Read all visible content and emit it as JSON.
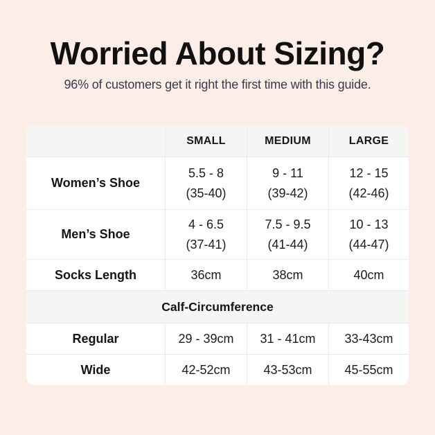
{
  "header": {
    "title": "Worried About Sizing?",
    "subtitle": "96% of customers get it right the first time with this guide."
  },
  "size_table": {
    "column_headers": [
      "SMALL",
      "MEDIUM",
      "LARGE"
    ],
    "shoe_rows": [
      {
        "label": "Women’s Shoe",
        "small": [
          "5.5 - 8",
          "(35-40)"
        ],
        "medium": [
          "9 - 11",
          "(39-42)"
        ],
        "large": [
          "12 - 15",
          "(42-46)"
        ]
      },
      {
        "label": "Men’s Shoe",
        "small": [
          "4 - 6.5",
          "(37-41)"
        ],
        "medium": [
          "7.5 - 9.5",
          "(41-44)"
        ],
        "large": [
          "10 - 13",
          "(44-47)"
        ]
      }
    ],
    "socks_row": {
      "label": "Socks Length",
      "small": "36cm",
      "medium": "38cm",
      "large": "40cm"
    },
    "section_header": "Calf-Circumference",
    "calf_rows": [
      {
        "label": "Regular",
        "small": "29 - 39cm",
        "medium": "31 - 41cm",
        "large": "33-43cm"
      },
      {
        "label": "Wide",
        "small": "42-52cm",
        "medium": "43-53cm",
        "large": "45-55cm"
      }
    ]
  },
  "chart_data": {
    "type": "table",
    "title": "Worried About Sizing?",
    "subtitle": "96% of customers get it right the first time with this guide.",
    "columns": [
      "",
      "SMALL",
      "MEDIUM",
      "LARGE"
    ],
    "rows": [
      [
        "Women’s Shoe",
        "5.5 - 8 (35-40)",
        "9 - 11 (39-42)",
        "12 - 15 (42-46)"
      ],
      [
        "Men’s Shoe",
        "4 - 6.5 (37-41)",
        "7.5 - 9.5 (41-44)",
        "10 - 13 (44-47)"
      ],
      [
        "Socks Length",
        "36cm",
        "38cm",
        "40cm"
      ],
      [
        "Calf-Circumference",
        "",
        "",
        ""
      ],
      [
        "Regular",
        "29 - 39cm",
        "31 - 41cm",
        "33-43cm"
      ],
      [
        "Wide",
        "42-52cm",
        "43-53cm",
        "45-55cm"
      ]
    ]
  },
  "colors": {
    "page_background": "#fceee7",
    "table_background": "#ffffff",
    "band_background": "#f5f5f3",
    "divider": "#e9e9e7",
    "title_text": "#111111",
    "subtitle_text": "#3a3a4a",
    "table_text": "#1b1b1b"
  }
}
